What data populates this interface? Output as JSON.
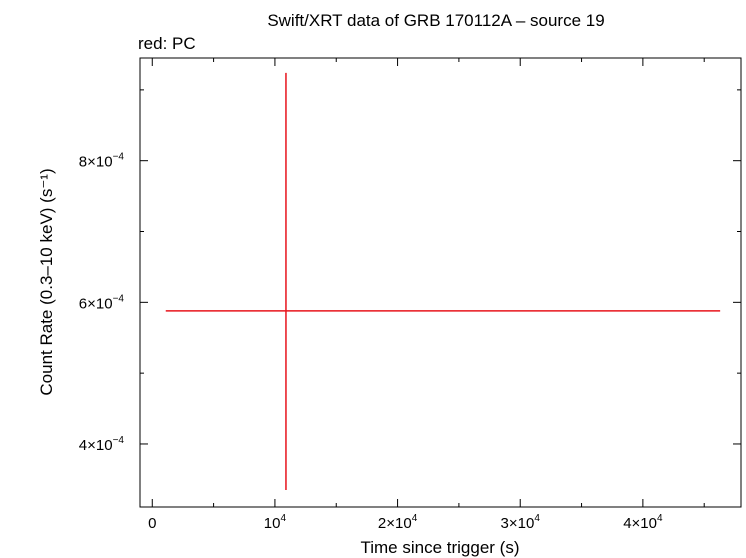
{
  "chart_data": {
    "type": "scatter",
    "title": "Swift/XRT data of GRB 170112A – source 19",
    "subtitle": "red: PC",
    "xlabel": "Time since trigger (s)",
    "ylabel": "Count Rate (0.3–10 keV) (s⁻¹)",
    "xlim": [
      -1000,
      48000
    ],
    "ylim": [
      0.000311,
      0.000945
    ],
    "grid": false,
    "x_ticks": [
      {
        "value": 0,
        "mantissa": "0",
        "exponent": ""
      },
      {
        "value": 10000,
        "mantissa": "10",
        "exponent": "4"
      },
      {
        "value": 20000,
        "mantissa": "2×10",
        "exponent": "4"
      },
      {
        "value": 30000,
        "mantissa": "3×10",
        "exponent": "4"
      },
      {
        "value": 40000,
        "mantissa": "4×10",
        "exponent": "4"
      }
    ],
    "y_ticks": [
      {
        "value": 0.0004,
        "mantissa": "4×10",
        "exponent": "−4"
      },
      {
        "value": 0.0006,
        "mantissa": "6×10",
        "exponent": "−4"
      },
      {
        "value": 0.0008,
        "mantissa": "8×10",
        "exponent": "−4"
      }
    ],
    "series": [
      {
        "name": "PC",
        "color": "#e8141c",
        "points": [
          {
            "x": 10900,
            "y": 0.000588,
            "xerr_low": 9800,
            "xerr_high": 35400,
            "yerr_low": 0.000253,
            "yerr_high": 0.000336
          }
        ]
      }
    ]
  }
}
